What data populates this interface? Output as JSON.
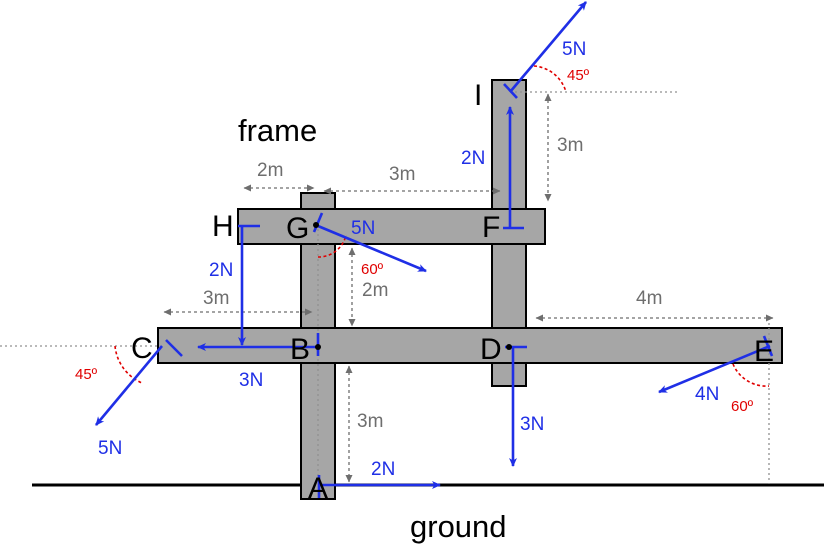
{
  "labels": {
    "frame": "frame",
    "ground": "ground"
  },
  "points": {
    "A": "A",
    "B": "B",
    "C": "C",
    "D": "D",
    "E": "E",
    "F": "F",
    "G": "G",
    "H": "H",
    "I": "I"
  },
  "forces": {
    "I": "5N",
    "F": "2N",
    "G": "5N",
    "H": "2N",
    "B": "3N",
    "C": "5N",
    "D": "3N",
    "E": "4N",
    "A": "2N"
  },
  "dimensions": {
    "hg": "2m",
    "gf": "3m",
    "fi": "3m",
    "gb": "2m",
    "cb": "3m",
    "de": "4m",
    "ba": "3m"
  },
  "angles": {
    "I": "45º",
    "G": "60º",
    "C": "45º",
    "E": "60º"
  },
  "colors": {
    "beam": "#a6a6a6",
    "force": "#1f2fe6",
    "angle": "#e00000",
    "dimension": "#6e6e6e"
  }
}
